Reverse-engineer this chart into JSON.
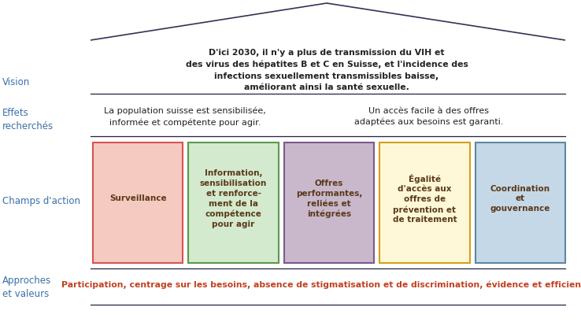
{
  "title_vision": "D'ici 2030, il n'y a plus de transmission du VIH et\ndes virus des hépatites B et C en Suisse, et l'incidence des\ninfections sexuellement transmissibles baisse,\naméliorant ainsi la santé sexuelle.",
  "label_vision": "Vision",
  "label_effets": "Effets\nrecherchés",
  "label_champs": "Champs d'action",
  "label_approches": "Approches\net valeurs",
  "effet1": "La population suisse est sensibilisée,\ninformée et compétente pour agir.",
  "effet2": "Un accès facile à des offres\nadaptées aux besoins est garanti.",
  "approches_text": "Participation, centrage sur les besoins, absence de stigmatisation et de discrimination, évidence et efficience",
  "boxes": [
    {
      "label": "Surveillance",
      "bg_color": "#f5cac0",
      "border_color": "#d9534f"
    },
    {
      "label": "Information,\nsensibilisation\net renforce-\nment de la\ncompétence\npour agir",
      "bg_color": "#d4eace",
      "border_color": "#5a9a50"
    },
    {
      "label": "Offres\nperformantes,\nreliées et\nintégrées",
      "bg_color": "#c9b8cc",
      "border_color": "#7a5a8a"
    },
    {
      "label": "Égalité\nd'accès aux\noffres de\nprévention et\nde traitement",
      "bg_color": "#fef8d8",
      "border_color": "#d4a017"
    },
    {
      "label": "Coordination\net\ngouvernance",
      "bg_color": "#c5d8e8",
      "border_color": "#5a8aa0"
    }
  ],
  "label_color": "#3a6ea8",
  "title_color": "#222222",
  "box_label_color": "#5a3a1a",
  "approches_color": "#c04020",
  "effet_color": "#222222",
  "line_color": "#222244",
  "roof_color": "#333355"
}
